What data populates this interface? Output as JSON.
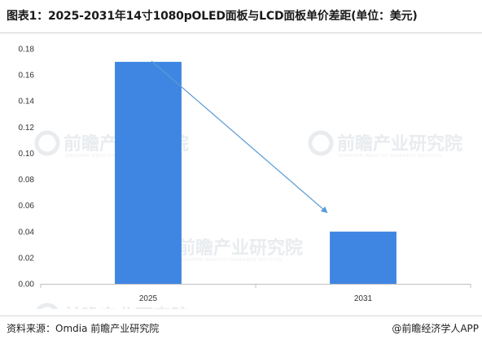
{
  "title": "图表1：2025-2031年14寸1080pOLED面板与LCD面板单价差距(单位：美元)",
  "footer": {
    "source": "资料来源：Omdia 前瞻产业研究院",
    "brand": "@前瞻经济学人APP"
  },
  "watermark": {
    "text": "前瞻产业研究院",
    "sub": "QIANZHAN INDUSTRY RESEARCH INSTITUTE"
  },
  "colors": {
    "bar": "#3f86e3",
    "arrow": "#5b9bd5",
    "axis": "#bfbfbf"
  },
  "chart_data": {
    "type": "bar",
    "title": "图表1：2025-2031年14寸1080pOLED面板与LCD面板单价差距(单位：美元)",
    "xlabel": "",
    "ylabel": "",
    "categories": [
      "2025",
      "2031"
    ],
    "values": [
      0.17,
      0.04
    ],
    "ylim": [
      0,
      0.18
    ],
    "yticks": [
      0.0,
      0.02,
      0.04,
      0.06,
      0.08,
      0.1,
      0.12,
      0.14,
      0.16,
      0.18
    ],
    "ytick_labels": [
      "0.00",
      "0.02",
      "0.04",
      "0.06",
      "0.08",
      "0.10",
      "0.12",
      "0.14",
      "0.16",
      "0.18"
    ],
    "grid": false,
    "legend": "none",
    "annotation": {
      "type": "arrow",
      "from_category": "2025",
      "to_category": "2031",
      "from_value": 0.17,
      "to_value": 0.055
    }
  }
}
